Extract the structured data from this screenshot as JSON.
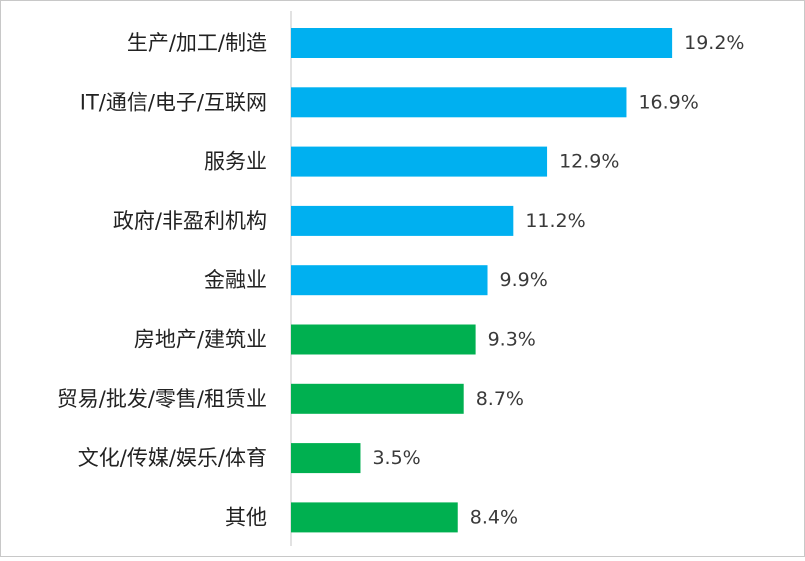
{
  "chart_data": {
    "type": "bar",
    "orientation": "horizontal",
    "categories": [
      "生产/加工/制造",
      "IT/通信/电子/互联网",
      "服务业",
      "政府/非盈利机构",
      "金融业",
      "房地产/建筑业",
      "贸易/批发/零售/租赁业",
      "文化/传媒/娱乐/体育",
      "其他"
    ],
    "values": [
      19.2,
      16.9,
      12.9,
      11.2,
      9.9,
      9.3,
      8.7,
      3.5,
      8.4
    ],
    "value_labels": [
      "19.2%",
      "16.9%",
      "12.9%",
      "11.2%",
      "9.9%",
      "9.3%",
      "8.7%",
      "3.5%",
      "8.4%"
    ],
    "unit": "%",
    "xlim": [
      0,
      20
    ],
    "grid": false,
    "legend": "none",
    "colors": {
      "top_group": "#00b0f0",
      "bottom_group": "#00b050",
      "axis": "#d9d9d9"
    },
    "bar_colors": [
      "#00b0f0",
      "#00b0f0",
      "#00b0f0",
      "#00b0f0",
      "#00b0f0",
      "#00b050",
      "#00b050",
      "#00b050",
      "#00b050"
    ]
  }
}
